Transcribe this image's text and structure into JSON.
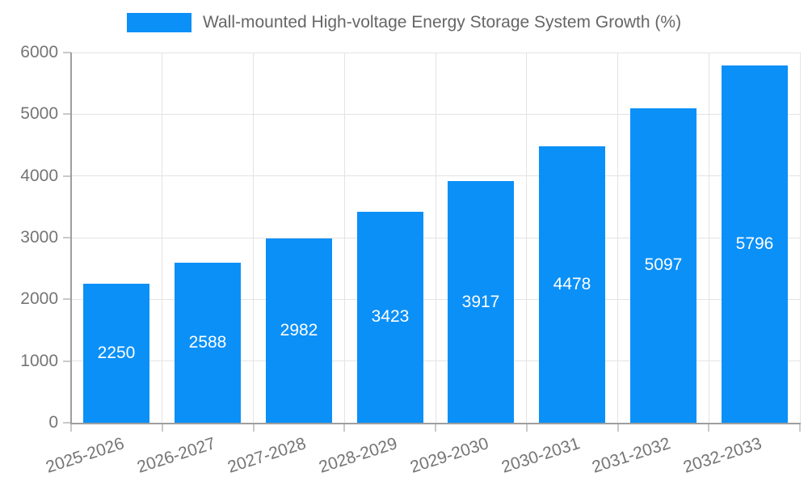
{
  "chart_data": {
    "type": "bar",
    "title": "",
    "legend": {
      "position": "top",
      "label": "Wall-mounted High-voltage Energy Storage System Growth (%)"
    },
    "categories": [
      "2025-2026",
      "2026-2027",
      "2027-2028",
      "2028-2029",
      "2029-2030",
      "2030-2031",
      "2031-2032",
      "2032-2033"
    ],
    "series": [
      {
        "name": "Wall-mounted High-voltage Energy Storage System Growth (%)",
        "values": [
          2250,
          2588,
          2982,
          3423,
          3917,
          4478,
          5097,
          5796
        ],
        "color": "#0b90f8"
      }
    ],
    "bar_value_labels": [
      "2250",
      "2588",
      "2982",
      "3423",
      "3917",
      "4478",
      "5097",
      "5796"
    ],
    "xlabel": "",
    "ylabel": "",
    "ylim": [
      0,
      6000
    ],
    "yticks": [
      0,
      1000,
      2000,
      3000,
      4000,
      5000,
      6000
    ],
    "ytick_labels": [
      "0",
      "1000",
      "2000",
      "3000",
      "4000",
      "5000",
      "6000"
    ],
    "grid": true,
    "value_label_position": "center-inside",
    "value_label_color": "#ffffff",
    "colors": {
      "bar": "#0b90f8",
      "grid": "#e3e3e3",
      "axis": "#9e9e9e",
      "tick": "#c9c9c9",
      "tick_label": "#757575",
      "legend_text": "#666666",
      "background": "#ffffff"
    }
  }
}
